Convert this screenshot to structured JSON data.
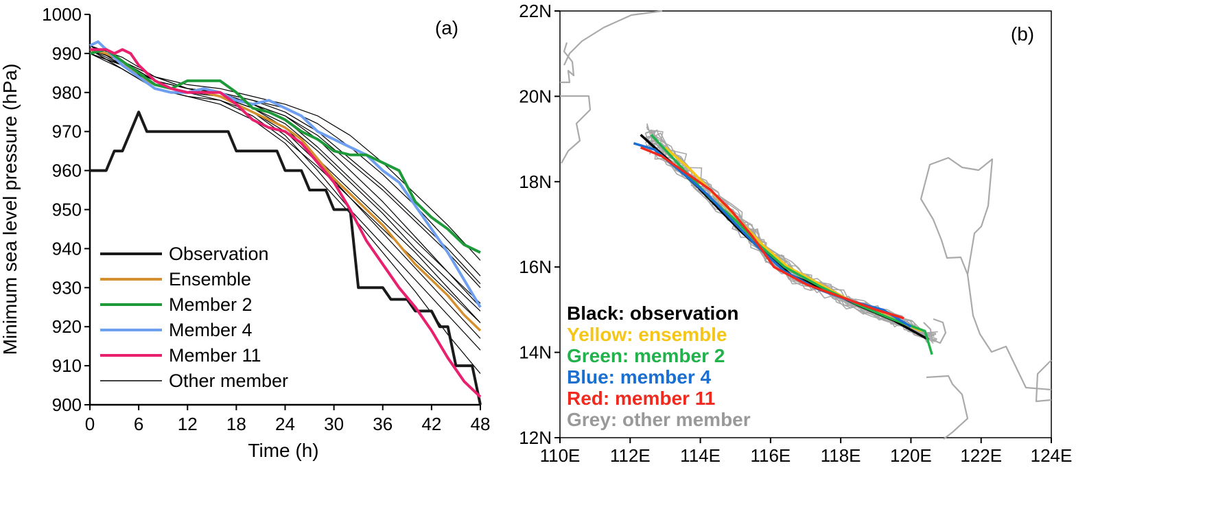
{
  "chart_data": [
    {
      "panel_label": "(a)",
      "type": "line",
      "xlabel": "Time (h)",
      "ylabel": "Minimum sea level pressure (hPa)",
      "xlim": [
        0,
        48
      ],
      "ylim": [
        900,
        1000
      ],
      "x_ticks": [
        0,
        6,
        12,
        18,
        24,
        30,
        36,
        42,
        48
      ],
      "y_ticks": [
        900,
        910,
        920,
        930,
        940,
        950,
        960,
        970,
        980,
        990,
        1000
      ],
      "legend_position": "lower-left",
      "series": [
        {
          "name": "Observation",
          "color": "#1a1a1a",
          "x": [
            0,
            2,
            3,
            4,
            5,
            6,
            7,
            17,
            18,
            23,
            24,
            26,
            27,
            29,
            30,
            32,
            33,
            36,
            37,
            39,
            40,
            42,
            43,
            44,
            45,
            47,
            48
          ],
          "y": [
            960,
            960,
            965,
            965,
            970,
            975,
            970,
            970,
            965,
            965,
            960,
            960,
            955,
            955,
            950,
            950,
            930,
            930,
            927,
            927,
            924,
            924,
            920,
            920,
            910,
            910,
            900
          ]
        },
        {
          "name": "Ensemble",
          "color": "#d4902e",
          "x": [
            0,
            2,
            4,
            6,
            8,
            10,
            12,
            14,
            16,
            18,
            20,
            22,
            24,
            26,
            28,
            30,
            32,
            34,
            36,
            38,
            40,
            42,
            44,
            46,
            48
          ],
          "y": [
            991,
            990,
            988,
            984,
            982,
            981,
            980,
            980,
            979,
            977,
            975,
            973,
            971,
            968,
            963,
            958,
            954,
            950,
            946,
            941,
            936,
            932,
            928,
            923,
            919
          ]
        },
        {
          "name": "Member 2",
          "color": "#1f9a3a",
          "x": [
            0,
            2,
            4,
            6,
            8,
            10,
            12,
            14,
            16,
            18,
            20,
            22,
            24,
            26,
            28,
            30,
            32,
            34,
            36,
            38,
            40,
            42,
            44,
            46,
            48
          ],
          "y": [
            990,
            991,
            988,
            985,
            982,
            981,
            983,
            983,
            983,
            980,
            976,
            975,
            973,
            970,
            968,
            965,
            964,
            964,
            962,
            960,
            952,
            948,
            945,
            941,
            939
          ]
        },
        {
          "name": "Member 4",
          "color": "#6fa0f0",
          "x": [
            0,
            1,
            2,
            4,
            6,
            8,
            10,
            12,
            14,
            16,
            18,
            20,
            22,
            24,
            26,
            28,
            30,
            32,
            34,
            36,
            38,
            40,
            42,
            44,
            46,
            48
          ],
          "y": [
            992,
            993,
            991,
            987,
            984,
            981,
            980,
            980,
            981,
            980,
            978,
            977,
            978,
            976,
            974,
            970,
            968,
            966,
            964,
            960,
            957,
            951,
            945,
            939,
            932,
            925
          ]
        },
        {
          "name": "Member 11",
          "color": "#e8206e",
          "x": [
            0,
            2,
            3,
            4,
            5,
            6,
            8,
            10,
            12,
            14,
            16,
            18,
            20,
            22,
            24,
            26,
            28,
            30,
            32,
            34,
            36,
            38,
            40,
            42,
            44,
            46,
            48
          ],
          "y": [
            991,
            991,
            990,
            991,
            990,
            987,
            983,
            981,
            980,
            980,
            980,
            977,
            973,
            971,
            970,
            967,
            962,
            957,
            950,
            942,
            936,
            930,
            925,
            919,
            912,
            906,
            902
          ]
        },
        {
          "name": "Other member",
          "color": "#000000",
          "x": [
            0,
            4,
            8,
            12,
            16,
            20,
            24,
            28,
            32,
            36,
            40,
            44,
            48
          ],
          "y": [
            [
              990,
              987,
              982,
              980,
              979,
              976,
              972,
              965,
              957,
              949,
              940,
              932,
              924
            ],
            [
              992,
              988,
              983,
              981,
              980,
              977,
              974,
              968,
              960,
              952,
              943,
              934,
              925
            ],
            [
              991,
              986,
              981,
              979,
              978,
              975,
              970,
              962,
              953,
              944,
              935,
              926,
              917
            ],
            [
              990,
              987,
              982,
              980,
              980,
              978,
              976,
              972,
              966,
              959,
              951,
              942,
              933
            ],
            [
              992,
              988,
              984,
              981,
              979,
              975,
              969,
              960,
              950,
              941,
              932,
              923,
              914
            ],
            [
              991,
              987,
              983,
              981,
              980,
              977,
              973,
              966,
              958,
              950,
              942,
              934,
              926
            ],
            [
              990,
              986,
              981,
              979,
              977,
              973,
              967,
              958,
              949,
              939,
              929,
              918,
              908
            ],
            [
              992,
              989,
              984,
              982,
              981,
              979,
              977,
              974,
              969,
              962,
              954,
              946,
              937
            ],
            [
              991,
              988,
              982,
              980,
              978,
              974,
              968,
              961,
              953,
              945,
              937,
              929,
              921
            ],
            [
              990,
              987,
              983,
              981,
              980,
              978,
              975,
              970,
              963,
              956,
              948,
              940,
              931
            ],
            [
              992,
              987,
              982,
              980,
              979,
              976,
              971,
              963,
              955,
              947,
              939,
              930,
              921
            ],
            [
              991,
              988,
              984,
              981,
              980,
              977,
              974,
              969,
              962,
              955,
              947,
              939,
              930
            ]
          ]
        }
      ]
    },
    {
      "panel_label": "(b)",
      "type": "line",
      "xlim": [
        110,
        124
      ],
      "ylim": [
        12,
        22
      ],
      "x_ticks": [
        "110E",
        "112E",
        "114E",
        "116E",
        "118E",
        "120E",
        "122E",
        "124E"
      ],
      "y_ticks": [
        "12N",
        "14N",
        "16N",
        "18N",
        "20N",
        "22N"
      ],
      "key": [
        {
          "text": "Black: observation",
          "color": "#000000"
        },
        {
          "text": "Yellow: ensemble",
          "color": "#f5c518"
        },
        {
          "text": "Green: member 2",
          "color": "#22b24c"
        },
        {
          "text": "Blue: member 4",
          "color": "#1a6fd0"
        },
        {
          "text": "Red: member 11",
          "color": "#f02a1e"
        },
        {
          "text": "Grey: other member",
          "color": "#999999"
        }
      ],
      "tracks": [
        {
          "name": "observation",
          "color": "#000000",
          "x": [
            120.5,
            119.5,
            118.5,
            117.5,
            116.6,
            115.9,
            115.2,
            114.6,
            113.9,
            113.1,
            112.3
          ],
          "y": [
            14.3,
            14.75,
            15.1,
            15.5,
            15.8,
            16.3,
            16.8,
            17.3,
            17.9,
            18.5,
            19.1
          ]
        },
        {
          "name": "ensemble",
          "color": "#f5c518",
          "x": [
            120.3,
            119.3,
            118.3,
            117.4,
            116.5,
            115.8,
            115.1,
            114.4,
            113.7,
            113.0
          ],
          "y": [
            14.5,
            14.85,
            15.2,
            15.6,
            16.0,
            16.5,
            17.1,
            17.7,
            18.3,
            18.8
          ]
        },
        {
          "name": "member 2",
          "color": "#22b24c",
          "x": [
            120.6,
            120.4,
            119.4,
            118.4,
            117.4,
            116.4,
            115.7,
            115.0,
            114.3,
            113.5,
            112.6
          ],
          "y": [
            13.95,
            14.5,
            14.8,
            15.15,
            15.55,
            16.0,
            16.5,
            17.1,
            17.6,
            18.3,
            19.1
          ]
        },
        {
          "name": "member 4",
          "color": "#1a6fd0",
          "x": [
            120.0,
            119.2,
            118.3,
            117.3,
            116.4,
            115.6,
            114.9,
            114.2,
            113.5,
            112.7,
            112.1
          ],
          "y": [
            14.6,
            15.0,
            15.2,
            15.5,
            15.9,
            16.5,
            17.1,
            17.7,
            18.2,
            18.75,
            18.9
          ]
        },
        {
          "name": "member 11",
          "color": "#f02a1e",
          "x": [
            119.8,
            119.0,
            118.0,
            117.0,
            116.1,
            115.5,
            114.9,
            114.3,
            113.6,
            112.9,
            112.3
          ],
          "y": [
            14.8,
            15.0,
            15.3,
            15.6,
            16.0,
            16.7,
            17.3,
            17.8,
            18.2,
            18.6,
            18.8
          ]
        }
      ]
    }
  ]
}
